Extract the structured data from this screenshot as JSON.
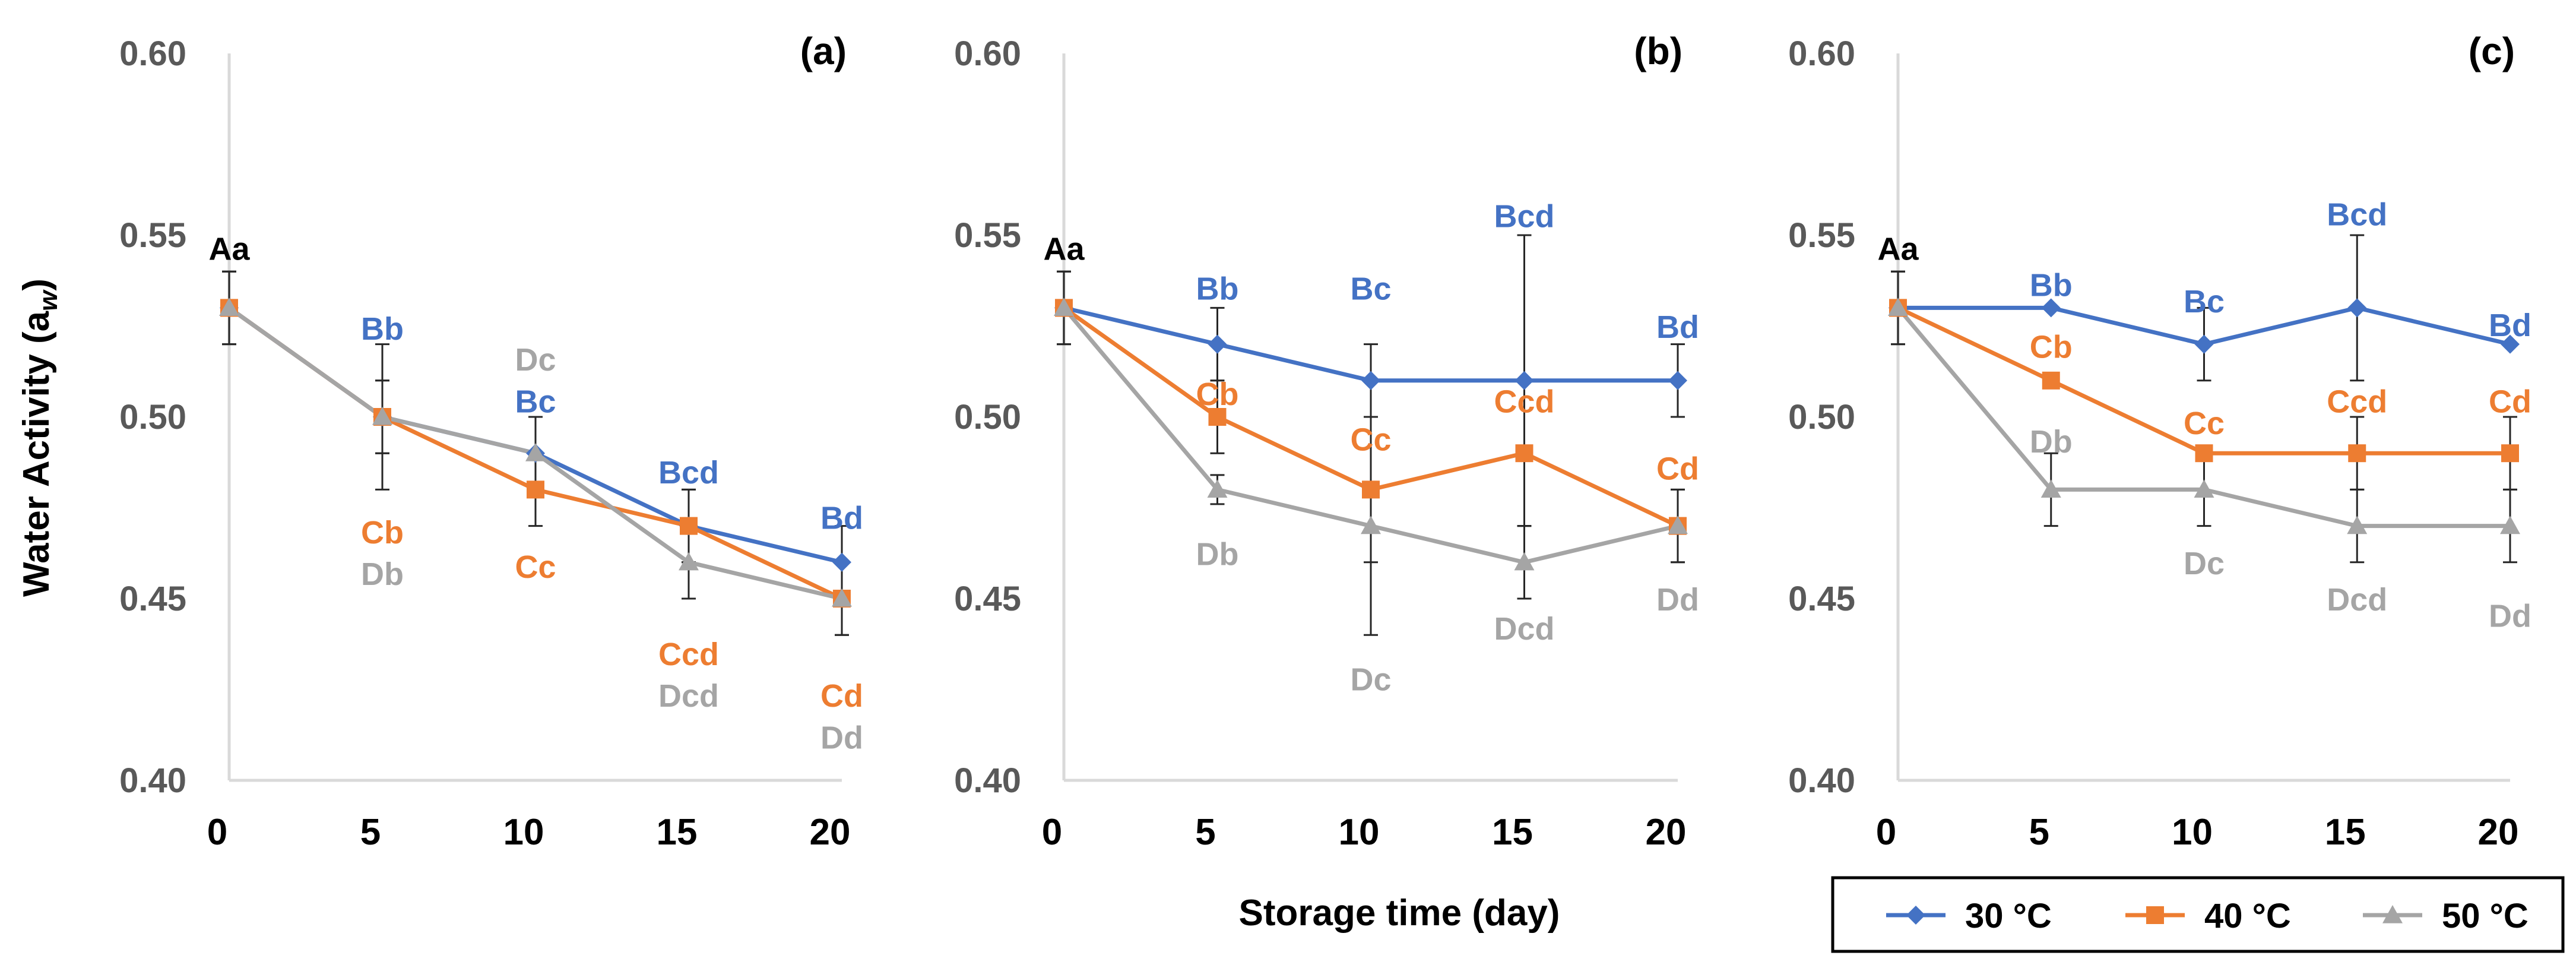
{
  "figure": {
    "ylabel": "Water Activity (a",
    "ylabel_sub": "w",
    "ylabel_close": ")",
    "xlabel": "Storage time (day)"
  },
  "colors": {
    "s30": "#4472C4",
    "s40": "#ED7D31",
    "s50": "#A5A5A5",
    "axis": "#D9D9D9",
    "tick_text": "#595959",
    "annot_black": "#000000"
  },
  "legend": {
    "items": [
      {
        "key": "s30",
        "label": "30 °C",
        "marker": "diamond"
      },
      {
        "key": "s40",
        "label": "40 °C",
        "marker": "square"
      },
      {
        "key": "s50",
        "label": "50 °C",
        "marker": "triangle"
      }
    ]
  },
  "chart_data": [
    {
      "type": "line",
      "panel": "(a)",
      "x": [
        0,
        5,
        10,
        15,
        20
      ],
      "xlim": [
        0,
        20
      ],
      "ylim": [
        0.4,
        0.6
      ],
      "yticks": [
        "0.40",
        "0.45",
        "0.50",
        "0.55",
        "0.60"
      ],
      "xticks": [
        "0",
        "5",
        "10",
        "15",
        "20"
      ],
      "series": [
        {
          "name": "30 °C",
          "key": "s30",
          "values": [
            0.53,
            0.5,
            0.49,
            0.47,
            0.46
          ],
          "err": [
            0.01,
            0.01,
            0.01,
            0.01,
            0.01
          ]
        },
        {
          "name": "40 °C",
          "key": "s40",
          "values": [
            0.53,
            0.5,
            0.48,
            0.47,
            0.45
          ],
          "err": [
            0.01,
            0.01,
            0.01,
            0.01,
            0.01
          ]
        },
        {
          "name": "50 °C",
          "key": "s50",
          "values": [
            0.53,
            0.5,
            0.49,
            0.46,
            0.45
          ],
          "err": [
            0.01,
            0.02,
            0.01,
            0.01,
            0.01
          ]
        }
      ],
      "annotations": [
        {
          "text": "Aa",
          "x": 0,
          "y": 0.5465,
          "color": "annot_black"
        },
        {
          "text": "Bb",
          "x": 5,
          "y": 0.5245,
          "color": "s30"
        },
        {
          "text": "Cb",
          "x": 5,
          "y": 0.4685,
          "color": "s40"
        },
        {
          "text": "Db",
          "x": 5,
          "y": 0.457,
          "color": "s50"
        },
        {
          "text": "Dc",
          "x": 10,
          "y": 0.516,
          "color": "s50"
        },
        {
          "text": "Bc",
          "x": 10,
          "y": 0.5045,
          "color": "s30"
        },
        {
          "text": "Cc",
          "x": 10,
          "y": 0.459,
          "color": "s40"
        },
        {
          "text": "Bcd",
          "x": 15,
          "y": 0.485,
          "color": "s30"
        },
        {
          "text": "Ccd",
          "x": 15,
          "y": 0.435,
          "color": "s40"
        },
        {
          "text": "Dcd",
          "x": 15,
          "y": 0.4235,
          "color": "s50"
        },
        {
          "text": "Bd",
          "x": 20,
          "y": 0.4725,
          "color": "s30"
        },
        {
          "text": "Cd",
          "x": 20,
          "y": 0.4235,
          "color": "s40"
        },
        {
          "text": "Dd",
          "x": 20,
          "y": 0.412,
          "color": "s50"
        }
      ]
    },
    {
      "type": "line",
      "panel": "(b)",
      "x": [
        0,
        5,
        10,
        15,
        20
      ],
      "xlim": [
        0,
        20
      ],
      "ylim": [
        0.4,
        0.6
      ],
      "yticks": [
        "0.40",
        "0.45",
        "0.50",
        "0.55",
        "0.60"
      ],
      "xticks": [
        "0",
        "5",
        "10",
        "15",
        "20"
      ],
      "series": [
        {
          "name": "30 °C",
          "key": "s30",
          "values": [
            0.53,
            0.52,
            0.51,
            0.51,
            0.51
          ],
          "err": [
            0.01,
            0.01,
            0.01,
            0.04,
            0.01
          ]
        },
        {
          "name": "40 °C",
          "key": "s40",
          "values": [
            0.53,
            0.5,
            0.48,
            0.49,
            0.47
          ],
          "err": [
            0.01,
            0.01,
            0.02,
            0.02,
            0.01
          ]
        },
        {
          "name": "50 °C",
          "key": "s50",
          "values": [
            0.53,
            0.48,
            0.47,
            0.46,
            0.47
          ],
          "err": [
            0.01,
            0.004,
            0.03,
            0.01,
            0.01
          ]
        }
      ],
      "annotations": [
        {
          "text": "Aa",
          "x": 0,
          "y": 0.5465,
          "color": "annot_black"
        },
        {
          "text": "Bb",
          "x": 5,
          "y": 0.5355,
          "color": "s30"
        },
        {
          "text": "Cb",
          "x": 5,
          "y": 0.5065,
          "color": "s40"
        },
        {
          "text": "Db",
          "x": 5,
          "y": 0.4625,
          "color": "s50"
        },
        {
          "text": "Bc",
          "x": 10,
          "y": 0.5355,
          "color": "s30"
        },
        {
          "text": "Cc",
          "x": 10,
          "y": 0.494,
          "color": "s40"
        },
        {
          "text": "Dc",
          "x": 10,
          "y": 0.428,
          "color": "s50"
        },
        {
          "text": "Bcd",
          "x": 15,
          "y": 0.5555,
          "color": "s30"
        },
        {
          "text": "Ccd",
          "x": 15,
          "y": 0.5045,
          "color": "s40"
        },
        {
          "text": "Dcd",
          "x": 15,
          "y": 0.442,
          "color": "s50"
        },
        {
          "text": "Bd",
          "x": 20,
          "y": 0.525,
          "color": "s30"
        },
        {
          "text": "Cd",
          "x": 20,
          "y": 0.486,
          "color": "s40"
        },
        {
          "text": "Dd",
          "x": 20,
          "y": 0.45,
          "color": "s50"
        }
      ]
    },
    {
      "type": "line",
      "panel": "(c)",
      "x": [
        0,
        5,
        10,
        15,
        20
      ],
      "xlim": [
        0,
        20
      ],
      "ylim": [
        0.4,
        0.6
      ],
      "yticks": [
        "0.40",
        "0.45",
        "0.50",
        "0.55",
        "0.60"
      ],
      "xticks": [
        "0",
        "5",
        "10",
        "15",
        "20"
      ],
      "series": [
        {
          "name": "30 °C",
          "key": "s30",
          "values": [
            0.53,
            0.53,
            0.52,
            0.53,
            0.52
          ],
          "err": [
            0.01,
            0.0,
            0.01,
            0.02,
            0.0
          ]
        },
        {
          "name": "40 °C",
          "key": "s40",
          "values": [
            0.53,
            0.51,
            0.49,
            0.49,
            0.49
          ],
          "err": [
            0.01,
            0.0,
            0.0,
            0.01,
            0.01
          ]
        },
        {
          "name": "50 °C",
          "key": "s50",
          "values": [
            0.53,
            0.48,
            0.48,
            0.47,
            0.47
          ],
          "err": [
            0.01,
            0.01,
            0.01,
            0.01,
            0.01
          ]
        }
      ],
      "annotations": [
        {
          "text": "Aa",
          "x": 0,
          "y": 0.5465,
          "color": "annot_black"
        },
        {
          "text": "Bb",
          "x": 5,
          "y": 0.5365,
          "color": "s30"
        },
        {
          "text": "Cb",
          "x": 5,
          "y": 0.5195,
          "color": "s40"
        },
        {
          "text": "Db",
          "x": 5,
          "y": 0.4935,
          "color": "s50"
        },
        {
          "text": "Bc",
          "x": 10,
          "y": 0.532,
          "color": "s30"
        },
        {
          "text": "Cc",
          "x": 10,
          "y": 0.4985,
          "color": "s40"
        },
        {
          "text": "Dc",
          "x": 10,
          "y": 0.46,
          "color": "s50"
        },
        {
          "text": "Bcd",
          "x": 15,
          "y": 0.556,
          "color": "s30"
        },
        {
          "text": "Ccd",
          "x": 15,
          "y": 0.5045,
          "color": "s40"
        },
        {
          "text": "Dcd",
          "x": 15,
          "y": 0.45,
          "color": "s50"
        },
        {
          "text": "Bd",
          "x": 20,
          "y": 0.5255,
          "color": "s30"
        },
        {
          "text": "Cd",
          "x": 20,
          "y": 0.5045,
          "color": "s40"
        },
        {
          "text": "Dd",
          "x": 20,
          "y": 0.4455,
          "color": "s50"
        }
      ]
    }
  ]
}
